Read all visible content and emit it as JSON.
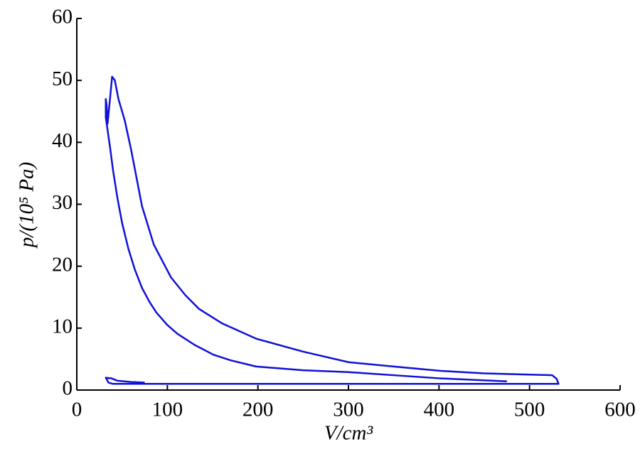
{
  "chart_data": {
    "type": "line",
    "x_label": "V/cm³",
    "y_label": "p/(10⁵ Pa)",
    "xlim": [
      0,
      600
    ],
    "xticks": [
      0,
      100,
      200,
      300,
      400,
      500,
      600
    ],
    "ylim": [
      0,
      60
    ],
    "yticks": [
      0,
      10,
      20,
      30,
      40,
      50,
      60
    ],
    "grid": false,
    "series": [
      {
        "color": "#1010d8",
        "x": [
          475,
          400,
          300,
          250,
          198,
          170,
          151,
          130,
          111,
          100,
          88,
          80,
          72,
          64,
          57,
          50,
          45,
          40,
          37,
          34,
          32,
          32,
          33,
          34,
          36,
          39,
          42,
          46,
          53,
          60,
          72,
          85,
          104,
          120,
          135,
          160,
          198,
          250,
          300,
          350,
          402,
          450,
          500,
          525,
          530,
          532,
          300,
          100,
          40,
          35,
          32,
          38,
          45,
          60,
          75
        ],
        "values": [
          1.4,
          1.9,
          2.9,
          3.2,
          3.8,
          4.8,
          5.7,
          7.3,
          9.1,
          10.5,
          12.5,
          14.3,
          16.5,
          19.5,
          22.8,
          27,
          30.9,
          35.5,
          38.9,
          42,
          44,
          47,
          46,
          43,
          46,
          50.6,
          50,
          47,
          43.5,
          38.8,
          29.7,
          23.5,
          18.2,
          15.3,
          13.1,
          10.8,
          8.3,
          6.2,
          4.5,
          3.8,
          3.1,
          2.7,
          2.5,
          2.4,
          1.8,
          1.0,
          1.0,
          1.0,
          1.0,
          1.2,
          2.0,
          1.9,
          1.5,
          1.3,
          1.2
        ]
      }
    ]
  }
}
